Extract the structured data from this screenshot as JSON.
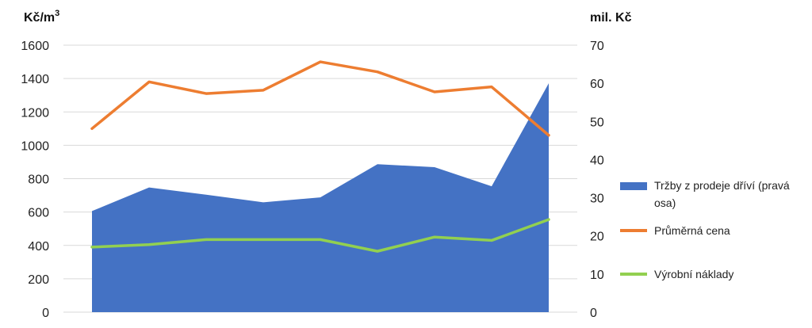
{
  "chart_data": {
    "type": "area",
    "left_axis": {
      "unit_label": "Kč/m",
      "unit_superscript": "3",
      "ylim": [
        0,
        1600
      ],
      "ticks": [
        "0",
        "200",
        "400",
        "600",
        "800",
        "1000",
        "1200",
        "1400",
        "1600"
      ]
    },
    "right_axis": {
      "unit_label": "mil. Kč",
      "ylim": [
        0,
        70
      ],
      "ticks": [
        "0",
        "10",
        "20",
        "30",
        "40",
        "50",
        "60",
        "70"
      ]
    },
    "x_points": 9,
    "grid": true,
    "legend_position": "right",
    "series": [
      {
        "name_line1": "Tržby z prodeje dříví (pravá",
        "name_line2": "osa)",
        "kind": "area",
        "axis": "right",
        "color": "#4472C4",
        "values": [
          26.5,
          32.7,
          30.8,
          28.8,
          30.1,
          38.8,
          38.0,
          33.0,
          60.0
        ]
      },
      {
        "name": "Průměrná cena",
        "kind": "line",
        "axis": "left",
        "color": "#ED7D31",
        "values": [
          1100,
          1380,
          1310,
          1330,
          1500,
          1440,
          1320,
          1350,
          1060
        ]
      },
      {
        "name": "Výrobní náklady",
        "kind": "line",
        "axis": "left",
        "color": "#92D050",
        "values": [
          390,
          405,
          435,
          435,
          435,
          365,
          450,
          430,
          555
        ]
      }
    ]
  }
}
